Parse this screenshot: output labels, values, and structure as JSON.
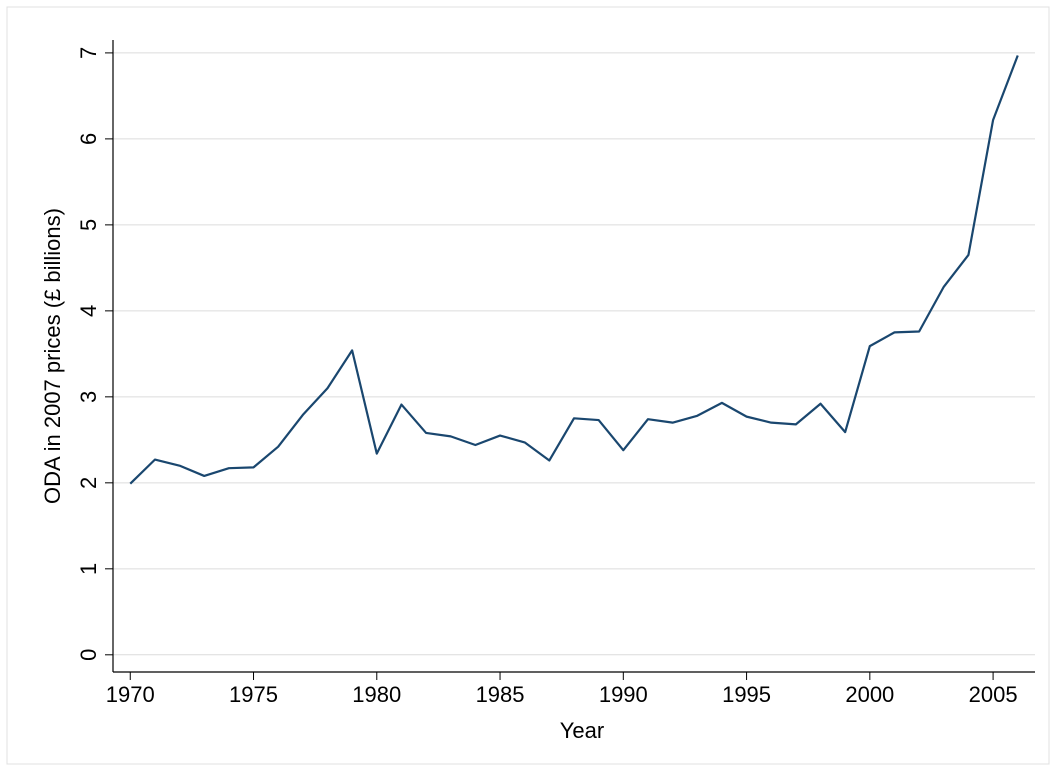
{
  "chart_data": {
    "type": "line",
    "x_label": "Year",
    "y_label": "ODA in 2007 prices (£ billions)",
    "x": [
      1970,
      1971,
      1972,
      1973,
      1974,
      1975,
      1976,
      1977,
      1978,
      1979,
      1980,
      1981,
      1982,
      1983,
      1984,
      1985,
      1986,
      1987,
      1988,
      1989,
      1990,
      1991,
      1992,
      1993,
      1994,
      1995,
      1996,
      1997,
      1998,
      1999,
      2000,
      2001,
      2002,
      2003,
      2004,
      2005,
      2006
    ],
    "series": [
      {
        "name": "ODA",
        "color": "#1a476f",
        "values": [
          1.99,
          2.27,
          2.2,
          2.08,
          2.17,
          2.18,
          2.42,
          2.79,
          3.1,
          3.54,
          2.34,
          2.91,
          2.58,
          2.54,
          2.44,
          2.55,
          2.47,
          2.26,
          2.75,
          2.73,
          2.38,
          2.74,
          2.7,
          2.78,
          2.93,
          2.77,
          2.7,
          2.68,
          2.92,
          2.59,
          3.59,
          3.75,
          3.76,
          4.28,
          4.65,
          6.22,
          6.97
        ]
      }
    ],
    "xlim": [
      1969.3,
      2006.7
    ],
    "xticks": [
      1970,
      1975,
      1980,
      1985,
      1990,
      1995,
      2000,
      2005
    ],
    "ylim": [
      -0.2,
      7.15
    ],
    "yticks": [
      0,
      1,
      2,
      3,
      4,
      5,
      6,
      7
    ],
    "grid": true
  }
}
